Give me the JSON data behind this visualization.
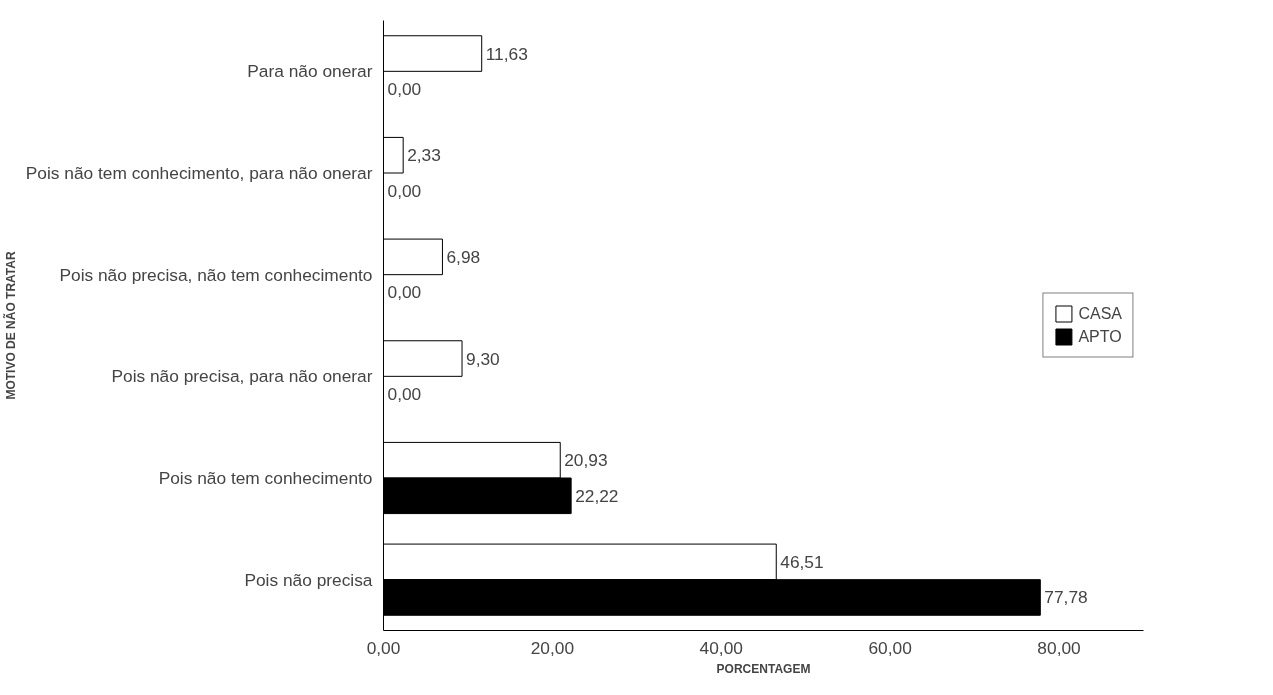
{
  "chart_data": {
    "type": "bar",
    "orientation": "horizontal",
    "xlabel": "PORCENTAGEM",
    "ylabel": "MOTIVO DE NÃO TRATAR",
    "categories": [
      "Para não onerar",
      "Pois não tem conhecimento, para não onerar",
      "Pois não precisa, não tem conhecimento",
      "Pois não precisa, para não onerar",
      "Pois não tem conhecimento",
      "Pois não precisa"
    ],
    "series": [
      {
        "name": "CASA",
        "color": "#ffffff",
        "values": [
          11.63,
          2.33,
          6.98,
          9.3,
          20.93,
          46.51
        ],
        "value_labels": [
          "11,63",
          "2,33",
          "6,98",
          "9,30",
          "20,93",
          "46,51"
        ]
      },
      {
        "name": "APTO",
        "color": "#000000",
        "values": [
          0,
          0,
          0,
          0,
          22.22,
          77.78
        ],
        "value_labels": [
          "0,00",
          "0,00",
          "0,00",
          "0,00",
          "22,22",
          "77,78"
        ]
      }
    ],
    "xlim": [
      0,
      90
    ],
    "xticks": [
      {
        "value": 0,
        "label": "0,00"
      },
      {
        "value": 20,
        "label": "20,00"
      },
      {
        "value": 40,
        "label": "40,00"
      },
      {
        "value": 60,
        "label": "60,00"
      },
      {
        "value": 80,
        "label": "80,00"
      }
    ],
    "grid": false,
    "legend": "right"
  }
}
